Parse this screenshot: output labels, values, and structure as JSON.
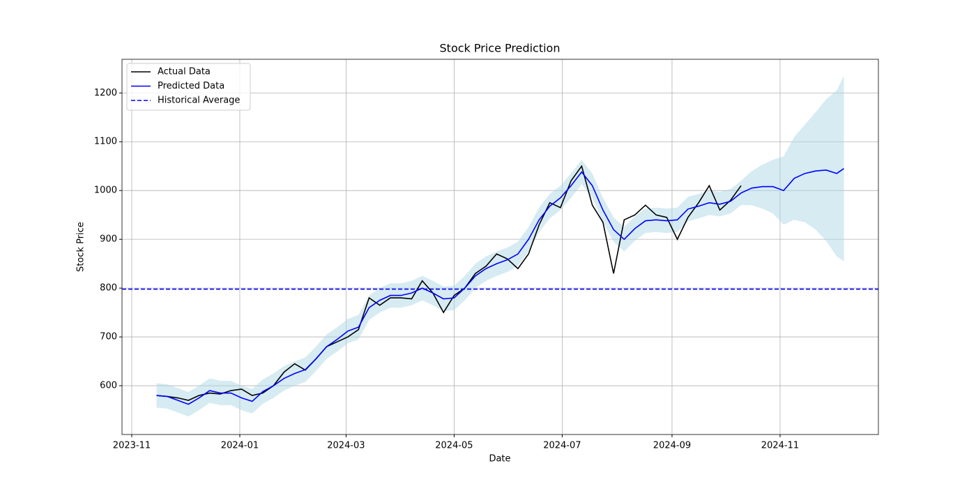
{
  "chart_data": {
    "type": "line",
    "title": "Stock Price Prediction",
    "x_label": "Date",
    "y_label": "Stock Price",
    "x": [
      14,
      20,
      26,
      32,
      38,
      44,
      50,
      56,
      62,
      68,
      74,
      80,
      86,
      92,
      98,
      104,
      110,
      116,
      122,
      128,
      134,
      140,
      146,
      152,
      158,
      164,
      170,
      176,
      182,
      188,
      194,
      200,
      206,
      212,
      218,
      224,
      230,
      236,
      242,
      248,
      254,
      260,
      266,
      272,
      278,
      284,
      290,
      296,
      302,
      308,
      314,
      320,
      326,
      332,
      338,
      344,
      350,
      356,
      362,
      368,
      374,
      380,
      386,
      392,
      398,
      402
    ],
    "series": [
      {
        "name": "Actual Data",
        "color": "#000000",
        "values": [
          580,
          578,
          575,
          570,
          580,
          585,
          583,
          590,
          593,
          580,
          585,
          600,
          628,
          645,
          632,
          655,
          680,
          690,
          700,
          715,
          780,
          765,
          780,
          780,
          778,
          815,
          790,
          750,
          785,
          800,
          830,
          845,
          870,
          860,
          840,
          870,
          930,
          975,
          965,
          1020,
          1050,
          970,
          935,
          830,
          940,
          950,
          970,
          950,
          945,
          900,
          945,
          975,
          1010,
          960,
          980,
          1010,
          null,
          null,
          null,
          null,
          null,
          null,
          null,
          null,
          null,
          null
        ]
      },
      {
        "name": "Predicted Data",
        "color": "#0000ff",
        "values": [
          580,
          578,
          570,
          562,
          575,
          590,
          585,
          585,
          575,
          568,
          588,
          600,
          615,
          625,
          633,
          655,
          680,
          695,
          712,
          720,
          760,
          775,
          785,
          785,
          790,
          800,
          790,
          778,
          780,
          800,
          825,
          840,
          850,
          858,
          870,
          900,
          940,
          968,
          985,
          1010,
          1038,
          1010,
          960,
          920,
          900,
          922,
          938,
          940,
          938,
          940,
          962,
          968,
          975,
          972,
          978,
          995,
          1005,
          1008,
          1008,
          1000,
          1025,
          1035,
          1040,
          1042,
          1035,
          1045
        ]
      }
    ],
    "band": {
      "color": "#add8e6",
      "lower": [
        555,
        553,
        545,
        537,
        550,
        565,
        560,
        560,
        550,
        543,
        563,
        575,
        590,
        600,
        608,
        630,
        655,
        670,
        687,
        695,
        735,
        750,
        760,
        760,
        765,
        775,
        765,
        753,
        755,
        775,
        800,
        815,
        825,
        833,
        845,
        875,
        915,
        943,
        960,
        985,
        1013,
        985,
        935,
        895,
        875,
        897,
        913,
        915,
        913,
        915,
        937,
        943,
        950,
        947,
        953,
        970,
        970,
        963,
        953,
        930,
        940,
        935,
        920,
        897,
        865,
        855
      ],
      "upper": [
        605,
        603,
        595,
        587,
        600,
        615,
        610,
        610,
        600,
        593,
        613,
        625,
        640,
        650,
        658,
        680,
        705,
        720,
        737,
        745,
        785,
        800,
        810,
        810,
        815,
        825,
        815,
        803,
        805,
        825,
        850,
        865,
        875,
        883,
        895,
        925,
        965,
        993,
        1010,
        1035,
        1063,
        1035,
        985,
        945,
        925,
        947,
        963,
        965,
        963,
        965,
        987,
        993,
        1000,
        997,
        1003,
        1020,
        1040,
        1053,
        1063,
        1070,
        1110,
        1135,
        1160,
        1187,
        1205,
        1235
      ]
    },
    "reference_line": {
      "name": "Historical Average",
      "value": 798,
      "color": "#0000ff",
      "style": "dashed"
    },
    "xlim": [
      -5.5,
      421.5
    ],
    "xticks": [
      {
        "value": 0,
        "label": "2023-11"
      },
      {
        "value": 61,
        "label": "2024-01"
      },
      {
        "value": 121,
        "label": "2024-03"
      },
      {
        "value": 182,
        "label": "2024-05"
      },
      {
        "value": 243,
        "label": "2024-07"
      },
      {
        "value": 305,
        "label": "2024-09"
      },
      {
        "value": 366,
        "label": "2024-11"
      }
    ],
    "ylim": [
      500,
      1269
    ],
    "yticks": [
      600,
      700,
      800,
      900,
      1000,
      1100,
      1200
    ],
    "grid": true,
    "legend": "upper left"
  }
}
